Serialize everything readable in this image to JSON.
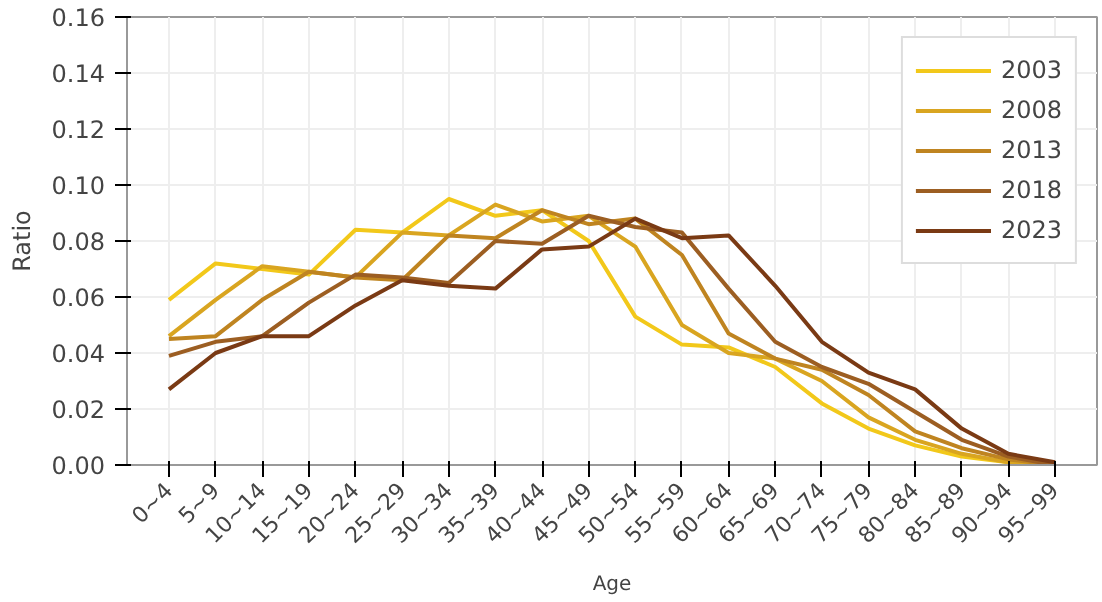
{
  "chart_data": {
    "type": "line",
    "xlabel": "Age",
    "ylabel": "Ratio",
    "categories": [
      "0~4",
      "5~9",
      "10~14",
      "15~19",
      "20~24",
      "25~29",
      "30~34",
      "35~39",
      "40~44",
      "45~49",
      "50~54",
      "55~59",
      "60~64",
      "65~69",
      "70~74",
      "75~79",
      "80~84",
      "85~89",
      "90~94",
      "95~99"
    ],
    "ylim": [
      0,
      0.16
    ],
    "yticks": [
      {
        "value": 0,
        "label": "0.00"
      },
      {
        "value": 0.02,
        "label": "0.02"
      },
      {
        "value": 0.04,
        "label": "0.04"
      },
      {
        "value": 0.06,
        "label": "0.06"
      },
      {
        "value": 0.08,
        "label": "0.08"
      },
      {
        "value": 0.1,
        "label": "0.10"
      },
      {
        "value": 0.12,
        "label": "0.12"
      },
      {
        "value": 0.14,
        "label": "0.14"
      },
      {
        "value": 0.16,
        "label": "0.16"
      }
    ],
    "grid": true,
    "legend": "top right",
    "marker": "none",
    "line_style": "solid",
    "series": [
      {
        "name": "2003",
        "color": "#f2c81a",
        "values": [
          0.059,
          0.072,
          0.07,
          0.068,
          0.084,
          0.083,
          0.095,
          0.089,
          0.091,
          0.08,
          0.053,
          0.043,
          0.042,
          0.035,
          0.022,
          0.013,
          0.007,
          0.003,
          0.001,
          0.0
        ]
      },
      {
        "name": "2008",
        "color": "#d9a520",
        "values": [
          0.046,
          0.059,
          0.071,
          0.069,
          0.067,
          0.083,
          0.082,
          0.093,
          0.087,
          0.089,
          0.078,
          0.05,
          0.04,
          0.038,
          0.03,
          0.017,
          0.009,
          0.004,
          0.001,
          0.0
        ]
      },
      {
        "name": "2013",
        "color": "#bf8420",
        "values": [
          0.045,
          0.046,
          0.059,
          0.069,
          0.067,
          0.066,
          0.082,
          0.081,
          0.091,
          0.086,
          0.088,
          0.075,
          0.047,
          0.038,
          0.034,
          0.025,
          0.012,
          0.006,
          0.002,
          0.0
        ]
      },
      {
        "name": "2018",
        "color": "#9c5e22",
        "values": [
          0.039,
          0.044,
          0.046,
          0.058,
          0.068,
          0.067,
          0.065,
          0.08,
          0.079,
          0.089,
          0.085,
          0.083,
          0.063,
          0.044,
          0.035,
          0.029,
          0.019,
          0.009,
          0.003,
          0.0
        ]
      },
      {
        "name": "2023",
        "color": "#7a3a14",
        "values": [
          0.027,
          0.04,
          0.046,
          0.046,
          0.057,
          0.066,
          0.064,
          0.063,
          0.077,
          0.078,
          0.088,
          0.081,
          0.082,
          0.064,
          0.044,
          0.033,
          0.027,
          0.013,
          0.004,
          0.001
        ]
      }
    ]
  }
}
